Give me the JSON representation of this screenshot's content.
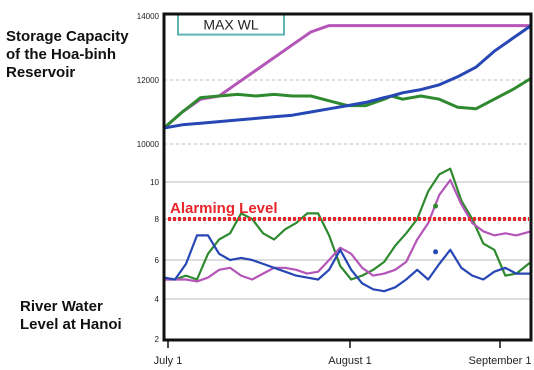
{
  "labels": {
    "upper_panel": "Storage Capacity\nof the Hoa-binh\nReservoir",
    "lower_panel": "River Water\nLevel at Hanoi",
    "max_wl": "MAX WL",
    "alarming_level": "Alarming Level"
  },
  "colors": {
    "magenta": "#b455b8",
    "green": "#2f8a2f",
    "blue": "#2747b5",
    "alarm": "#e8262b",
    "max_wl_box": "#5fb5b5",
    "frame": "#111111",
    "grid": "#bbbbbb"
  },
  "chart_data": [
    {
      "type": "line",
      "panel": "upper",
      "yticks": [
        "14000",
        "12000",
        "10000"
      ],
      "ylim": [
        10000,
        14000
      ],
      "reference_lines": [
        {
          "label": "MAX WL",
          "y": 13700
        }
      ],
      "grid": true,
      "x": [
        0,
        5,
        10,
        15,
        20,
        25,
        30,
        35,
        40,
        45,
        50,
        55,
        60,
        62,
        65,
        70,
        75,
        80,
        85,
        90,
        95,
        100
      ],
      "series": [
        {
          "color": "magenta",
          "values": [
            10500,
            11000,
            11400,
            11500,
            11900,
            12300,
            12700,
            13100,
            13500,
            13700,
            13700,
            13700,
            13700,
            13700,
            13700,
            13700,
            13700,
            13700,
            13700,
            13700,
            13700,
            13700
          ]
        },
        {
          "color": "green",
          "values": [
            10500,
            11000,
            11450,
            11500,
            11550,
            11500,
            11550,
            11500,
            11500,
            11350,
            11200,
            11200,
            11400,
            11500,
            11400,
            11500,
            11400,
            11150,
            11100,
            11400,
            11700,
            12050
          ]
        },
        {
          "color": "blue",
          "values": [
            10500,
            10600,
            10650,
            10700,
            10750,
            10800,
            10850,
            10900,
            11000,
            11100,
            11200,
            11300,
            11450,
            11500,
            11600,
            11700,
            11850,
            12100,
            12400,
            12900,
            13300,
            13700
          ]
        }
      ]
    },
    {
      "type": "line",
      "panel": "lower",
      "yticks": [
        "10",
        "8",
        "6",
        "4",
        "2"
      ],
      "ylim": [
        2,
        11
      ],
      "reference_lines": [
        {
          "label": "Alarming Level",
          "y": 8
        }
      ],
      "xticks": [
        "July 1",
        "August 1",
        "September 1"
      ],
      "grid": true,
      "x": [
        0,
        3,
        6,
        9,
        12,
        15,
        18,
        21,
        24,
        27,
        30,
        33,
        36,
        39,
        42,
        45,
        48,
        51,
        54,
        57,
        60,
        63,
        66,
        69,
        72,
        75,
        78,
        81,
        84,
        87,
        90,
        93,
        96,
        100
      ],
      "series": [
        {
          "color": "green",
          "values": [
            5.0,
            5.0,
            5.2,
            5.0,
            6.3,
            7.0,
            7.3,
            8.3,
            8.0,
            7.3,
            7.0,
            7.5,
            7.8,
            8.3,
            8.3,
            7.2,
            5.7,
            5.0,
            5.2,
            5.5,
            5.9,
            6.7,
            7.3,
            8.0,
            9.5,
            10.4,
            10.7,
            9.0,
            8.0,
            6.8,
            6.5,
            5.2,
            5.3,
            5.9
          ]
        },
        {
          "color": "magenta",
          "values": [
            5.0,
            5.0,
            5.0,
            4.9,
            5.1,
            5.5,
            5.6,
            5.2,
            5.0,
            5.3,
            5.6,
            5.6,
            5.5,
            5.3,
            5.4,
            6.0,
            6.6,
            6.3,
            5.6,
            5.2,
            5.3,
            5.5,
            5.9,
            7.0,
            7.8,
            9.3,
            10.1,
            8.8,
            7.8,
            7.4,
            7.2,
            7.3,
            7.2,
            7.4
          ]
        },
        {
          "color": "blue",
          "values": [
            5.1,
            5.0,
            5.8,
            7.2,
            7.2,
            6.3,
            6.0,
            6.1,
            6.0,
            5.8,
            5.6,
            5.4,
            5.2,
            5.1,
            5.0,
            5.5,
            6.5,
            5.5,
            4.8,
            4.5,
            4.4,
            4.6,
            5.0,
            5.5,
            5.0,
            5.8,
            6.5,
            5.6,
            5.2,
            5.0,
            5.4,
            5.6,
            5.3,
            5.3
          ]
        }
      ],
      "markers": [
        {
          "color": "green",
          "x": 74,
          "y": 8.7
        },
        {
          "color": "blue",
          "x": 74,
          "y": 6.4
        }
      ]
    }
  ]
}
